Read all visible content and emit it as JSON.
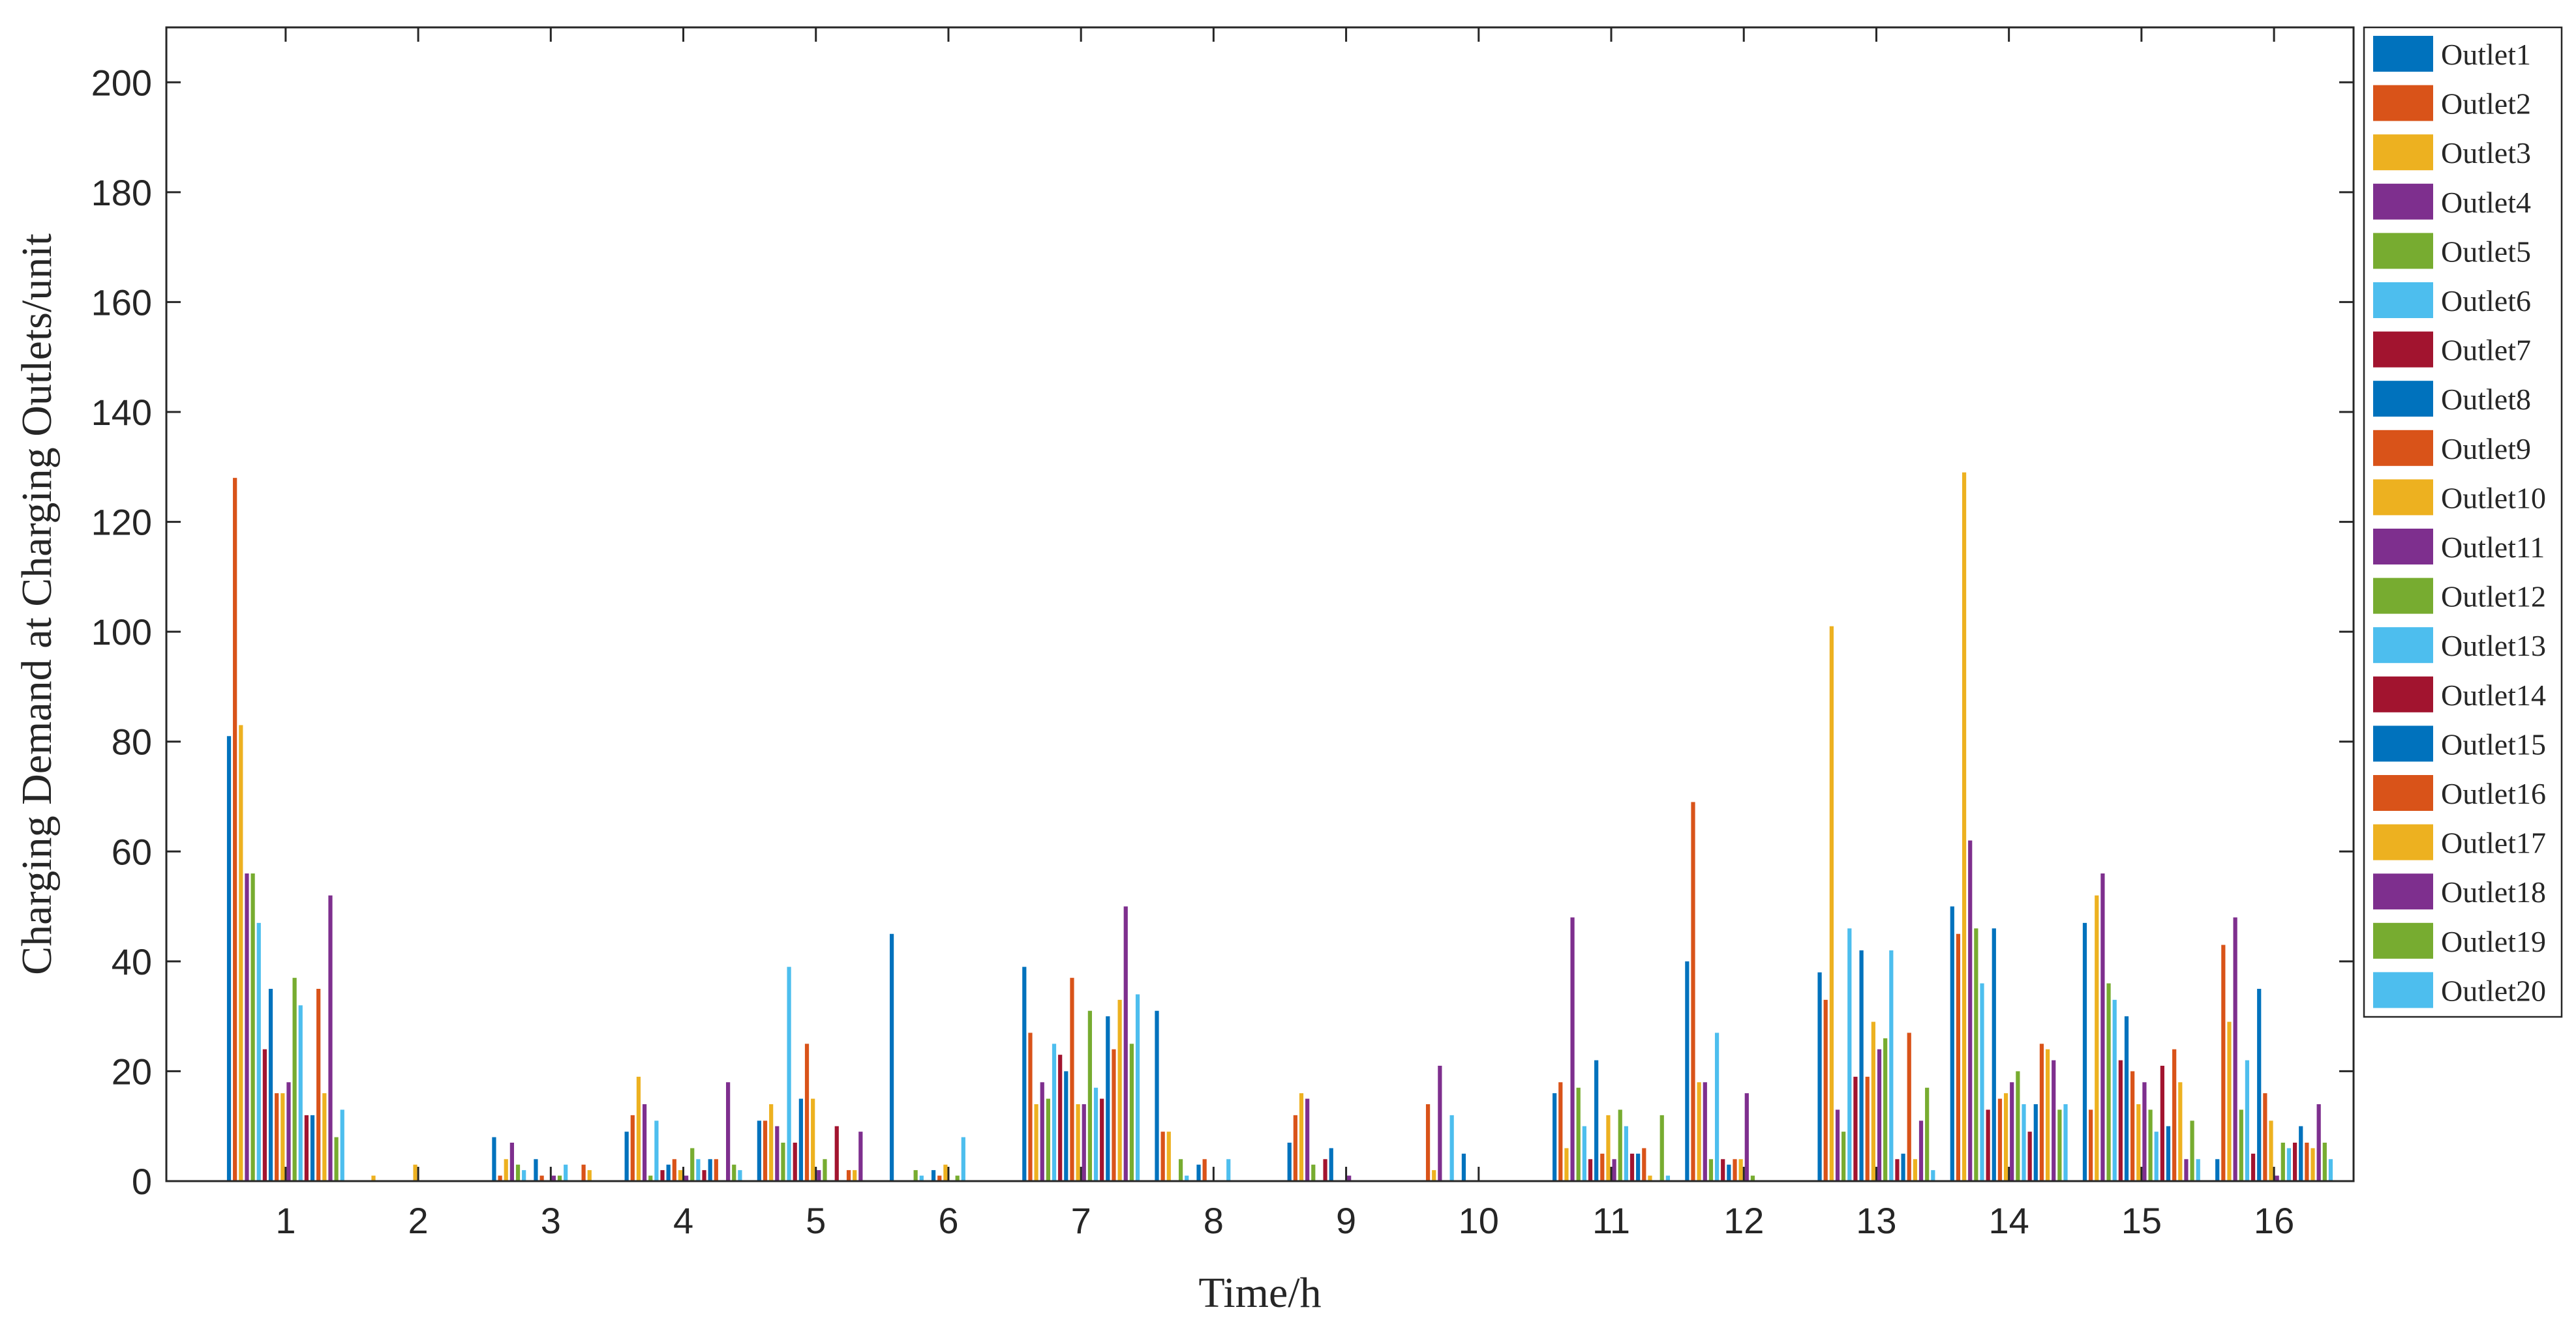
{
  "chart_data": {
    "type": "bar",
    "xlabel": "Time/h",
    "ylabel": "Charging Demand at Charging Outlets/unit",
    "ylim": [
      0,
      210
    ],
    "yticks": [
      0,
      20,
      40,
      60,
      80,
      100,
      120,
      140,
      160,
      180,
      200
    ],
    "grid": false,
    "legend_position": "right",
    "categories": [
      "1",
      "2",
      "3",
      "4",
      "5",
      "6",
      "7",
      "8",
      "9",
      "10",
      "11",
      "12",
      "13",
      "14",
      "15",
      "16"
    ],
    "series": [
      {
        "name": "Outlet1",
        "color": "#0072BD",
        "values": [
          81,
          0,
          8,
          9,
          11,
          45,
          39,
          31,
          7,
          0,
          16,
          40,
          38,
          50,
          47,
          4
        ]
      },
      {
        "name": "Outlet2",
        "color": "#D95319",
        "values": [
          128,
          0,
          1,
          12,
          11,
          0,
          27,
          9,
          12,
          14,
          18,
          69,
          33,
          45,
          13,
          43
        ]
      },
      {
        "name": "Outlet3",
        "color": "#EDB120",
        "values": [
          83,
          1,
          4,
          19,
          14,
          0,
          14,
          9,
          16,
          2,
          6,
          18,
          101,
          129,
          52,
          29
        ]
      },
      {
        "name": "Outlet4",
        "color": "#7E2F8E",
        "values": [
          56,
          0,
          7,
          14,
          10,
          0,
          18,
          0,
          15,
          21,
          48,
          18,
          13,
          62,
          56,
          48
        ]
      },
      {
        "name": "Outlet5",
        "color": "#77AC30",
        "values": [
          56,
          0,
          3,
          1,
          7,
          2,
          15,
          4,
          3,
          0,
          17,
          4,
          9,
          46,
          36,
          13
        ]
      },
      {
        "name": "Outlet6",
        "color": "#4DBEEE",
        "values": [
          47,
          0,
          2,
          11,
          39,
          1,
          25,
          1,
          0,
          12,
          10,
          27,
          46,
          36,
          33,
          22
        ]
      },
      {
        "name": "Outlet7",
        "color": "#A2142F",
        "values": [
          24,
          0,
          0,
          2,
          7,
          0,
          23,
          0,
          4,
          0,
          4,
          4,
          19,
          13,
          22,
          5
        ]
      },
      {
        "name": "Outlet8",
        "color": "#0072BD",
        "values": [
          35,
          0,
          4,
          3,
          15,
          2,
          20,
          3,
          6,
          5,
          22,
          3,
          42,
          46,
          30,
          35
        ]
      },
      {
        "name": "Outlet9",
        "color": "#D95319",
        "values": [
          16,
          0,
          1,
          4,
          25,
          1,
          37,
          4,
          0,
          0,
          5,
          4,
          19,
          15,
          20,
          16
        ]
      },
      {
        "name": "Outlet10",
        "color": "#EDB120",
        "values": [
          16,
          3,
          0,
          2,
          15,
          3,
          14,
          0,
          0,
          0,
          12,
          4,
          29,
          16,
          14,
          11
        ]
      },
      {
        "name": "Outlet11",
        "color": "#7E2F8E",
        "values": [
          18,
          0,
          1,
          1,
          2,
          0,
          14,
          0,
          1,
          0,
          4,
          16,
          24,
          18,
          18,
          1
        ]
      },
      {
        "name": "Outlet12",
        "color": "#77AC30",
        "values": [
          37,
          0,
          1,
          6,
          4,
          1,
          31,
          0,
          0,
          0,
          13,
          1,
          26,
          20,
          13,
          7
        ]
      },
      {
        "name": "Outlet13",
        "color": "#4DBEEE",
        "values": [
          32,
          0,
          3,
          4,
          0,
          8,
          17,
          4,
          0,
          0,
          10,
          0,
          42,
          14,
          9,
          6
        ]
      },
      {
        "name": "Outlet14",
        "color": "#A2142F",
        "values": [
          12,
          0,
          0,
          2,
          10,
          0,
          15,
          0,
          0,
          0,
          5,
          0,
          4,
          9,
          21,
          7
        ]
      },
      {
        "name": "Outlet15",
        "color": "#0072BD",
        "values": [
          12,
          0,
          0,
          4,
          0,
          0,
          30,
          0,
          0,
          0,
          5,
          0,
          5,
          14,
          10,
          10
        ]
      },
      {
        "name": "Outlet16",
        "color": "#D95319",
        "values": [
          35,
          0,
          3,
          4,
          2,
          0,
          24,
          0,
          0,
          0,
          6,
          0,
          27,
          25,
          24,
          7
        ]
      },
      {
        "name": "Outlet17",
        "color": "#EDB120",
        "values": [
          16,
          0,
          2,
          0,
          2,
          0,
          33,
          0,
          0,
          0,
          1,
          0,
          4,
          24,
          18,
          6
        ]
      },
      {
        "name": "Outlet18",
        "color": "#7E2F8E",
        "values": [
          52,
          0,
          0,
          18,
          9,
          0,
          50,
          0,
          0,
          0,
          0,
          0,
          11,
          22,
          4,
          14
        ]
      },
      {
        "name": "Outlet19",
        "color": "#77AC30",
        "values": [
          8,
          0,
          0,
          3,
          0,
          0,
          25,
          0,
          0,
          0,
          12,
          0,
          17,
          13,
          11,
          7
        ]
      },
      {
        "name": "Outlet20",
        "color": "#4DBEEE",
        "values": [
          13,
          0,
          0,
          2,
          0,
          0,
          34,
          0,
          0,
          0,
          1,
          0,
          2,
          14,
          4,
          4
        ]
      }
    ]
  }
}
